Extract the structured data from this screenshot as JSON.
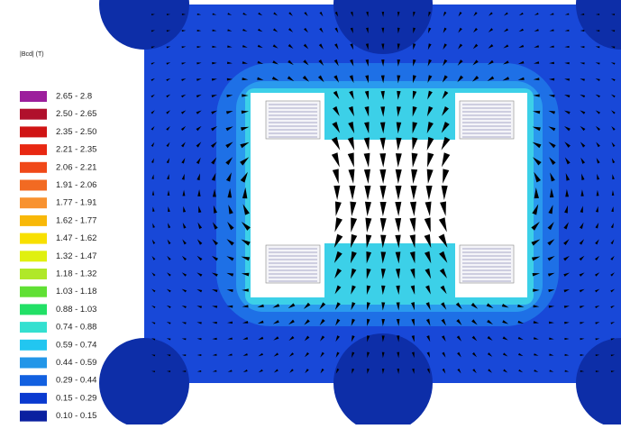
{
  "legend": {
    "title": "|Bcd| (T)",
    "items": [
      {
        "label": "2.65 -  2.8",
        "color": "#9c1f9c"
      },
      {
        "label": "2.50 -  2.65",
        "color": "#b0102c"
      },
      {
        "label": "2.35 -  2.50",
        "color": "#d01414"
      },
      {
        "label": "2.21 -  2.35",
        "color": "#e82812"
      },
      {
        "label": "2.06 -  2.21",
        "color": "#f04818"
      },
      {
        "label": "1.91 -  2.06",
        "color": "#f26a22"
      },
      {
        "label": "1.77 -  1.91",
        "color": "#f89230"
      },
      {
        "label": "1.62 -  1.77",
        "color": "#f8b808"
      },
      {
        "label": "1.47 -  1.62",
        "color": "#f8e000"
      },
      {
        "label": "1.32 -  1.47",
        "color": "#e0f010"
      },
      {
        "label": "1.18 -  1.32",
        "color": "#b0e828"
      },
      {
        "label": "1.03 -  1.18",
        "color": "#60e034"
      },
      {
        "label": "0.88 -  1.03",
        "color": "#22e066"
      },
      {
        "label": "0.74 -  0.88",
        "color": "#34e0d0"
      },
      {
        "label": "0.59 -  0.74",
        "color": "#22c6f0"
      },
      {
        "label": "0.44 -  0.59",
        "color": "#2296e8"
      },
      {
        "label": "0.29 -  0.44",
        "color": "#1260e0"
      },
      {
        "label": "0.15 -  0.29",
        "color": "#0a3ad0"
      },
      {
        "label": "0.10 -  0.15",
        "color": "#0a20a0"
      }
    ]
  }
}
